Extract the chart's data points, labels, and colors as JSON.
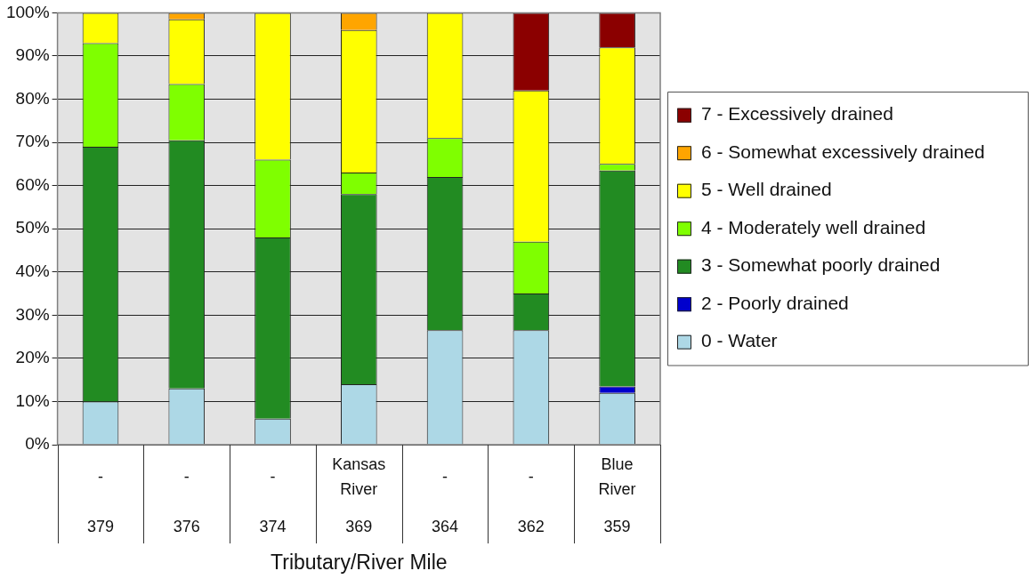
{
  "chart_data": {
    "type": "bar",
    "stacked": true,
    "xlabel": "Tributary/River Mile",
    "categories": [
      "-\n379",
      "-\n376",
      "-\n374",
      "Kansas River\n369",
      "-\n364",
      "-\n362",
      "Blue River\n359"
    ],
    "series": [
      {
        "name": "0 - Water",
        "color": "#add8e6",
        "values": [
          10,
          13,
          6,
          14,
          26.5,
          26.5,
          12
        ]
      },
      {
        "name": "2 - Poorly drained",
        "color": "#0000cd",
        "values": [
          null,
          null,
          null,
          null,
          null,
          null,
          1.5
        ]
      },
      {
        "name": "3 - Somewhat poorly drained",
        "color": "#228b22",
        "values": [
          59,
          57.5,
          42,
          44,
          35.5,
          8.5,
          50
        ]
      },
      {
        "name": "4 - Moderately well drained",
        "color": "#7fff00",
        "values": [
          24,
          13,
          18,
          5,
          9,
          12,
          1.5
        ]
      },
      {
        "name": "5 - Well drained",
        "color": "#ffff00",
        "values": [
          7,
          15,
          34,
          33,
          29,
          35,
          27
        ]
      },
      {
        "name": "6 - Somewhat excessively drained",
        "color": "#ffa500",
        "values": [
          null,
          1.5,
          null,
          4,
          null,
          null,
          null
        ]
      },
      {
        "name": "7 - Excessively drained",
        "color": "#8b0000",
        "values": [
          null,
          null,
          null,
          null,
          null,
          18,
          8
        ]
      }
    ],
    "ylim": [
      0,
      100
    ],
    "yticks": [
      {
        "value": 0,
        "label": "0%"
      },
      {
        "value": 10,
        "label": "10%"
      },
      {
        "value": 20,
        "label": "20%"
      },
      {
        "value": 30,
        "label": "30%"
      },
      {
        "value": 40,
        "label": "40%"
      },
      {
        "value": 50,
        "label": "50%"
      },
      {
        "value": 60,
        "label": "60%"
      },
      {
        "value": 70,
        "label": "70%"
      },
      {
        "value": 80,
        "label": "80%"
      },
      {
        "value": 90,
        "label": "90%"
      },
      {
        "value": 100,
        "label": "100%"
      }
    ],
    "grid": "y",
    "legend": "right"
  }
}
